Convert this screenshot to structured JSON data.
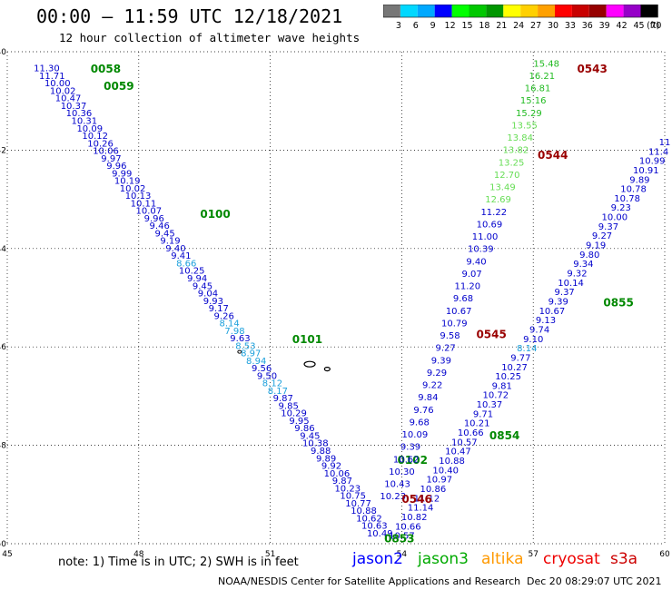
{
  "header": {
    "title": "00:00 – 11:59 UTC 12/18/2021",
    "subtitle": "12 hour collection of altimeter wave heights"
  },
  "colorbar": {
    "labels": [
      "3",
      "6",
      "9",
      "12",
      "15",
      "18",
      "21",
      "24",
      "27",
      "30",
      "33",
      "36",
      "39",
      "42",
      "45",
      "70"
    ],
    "unit": "(ft)",
    "colors": [
      "#777777",
      "#00d8ff",
      "#00a8ff",
      "#0000ff",
      "#00ff00",
      "#00c800",
      "#009600",
      "#ffff00",
      "#ffd000",
      "#ffa000",
      "#ff0000",
      "#c80000",
      "#960000",
      "#ff00ff",
      "#9600c8",
      "#000000"
    ]
  },
  "map": {
    "lon_ticks": [
      "45",
      "48",
      "51",
      "54",
      "57",
      "60"
    ],
    "lat_ticks": [
      "-40",
      "-42",
      "-44",
      "-46",
      "-48",
      "-50"
    ],
    "lon_range": [
      45,
      60
    ],
    "lat_range": [
      -50,
      -40
    ],
    "grid": true
  },
  "tracks": [
    {
      "satellite": "jason2",
      "color": "#0000cc",
      "start": [
        45.9,
        -40.4
      ],
      "end": [
        53.5,
        -49.85
      ],
      "values": [
        "11.30",
        "11.71",
        "10.00",
        "10.02",
        "10.47",
        "10.37",
        "10.36",
        "10.31",
        "10.09",
        "10.12",
        "10.26",
        "10.06",
        "9.97",
        "9.96",
        "9.99",
        "10.19",
        "10.02",
        "10.13",
        "10.11",
        "10.07",
        "9.96",
        "9.46",
        "9.45",
        "9.19",
        "9.40",
        "9.41",
        "8.66",
        "10.25",
        "9.94",
        "9.45",
        "9.04",
        "9.93",
        "9.17",
        "9.26",
        "8.14",
        "7.98",
        "9.63",
        "8.53",
        "8.97",
        "8.94",
        "9.56",
        "9.50",
        "8.12",
        "8.17",
        "9.87",
        "9.85",
        "10.29",
        "9.95",
        "9.86",
        "9.45",
        "10.38",
        "9.88",
        "9.89",
        "9.92",
        "10.06",
        "9.87",
        "10.23",
        "10.75",
        "10.77",
        "10.88",
        "10.62",
        "10.63",
        "10.49"
      ],
      "time_labels": [
        {
          "text": "0058",
          "lon": 46.9,
          "lat": -40.35
        },
        {
          "text": "0059",
          "lon": 47.2,
          "lat": -40.7
        },
        {
          "text": "0100",
          "lon": 49.4,
          "lat": -43.3
        },
        {
          "text": "0101",
          "lon": 51.5,
          "lat": -45.85
        },
        {
          "text": "0102",
          "lon": 53.9,
          "lat": -48.3
        }
      ]
    },
    {
      "satellite": "jason3",
      "color": "#00bb00",
      "start": [
        54.0,
        -49.9
      ],
      "end": [
        60.0,
        -41.9
      ],
      "values": [
        "10.57",
        "10.66",
        "10.82",
        "11.14",
        "11.12",
        "10.86",
        "10.97",
        "10.40",
        "10.88",
        "10.47",
        "10.57",
        "10.66",
        "10.21",
        "9.71",
        "10.37",
        "10.72",
        "9.81",
        "10.25",
        "10.27",
        "9.77",
        "8.14",
        "9.10",
        "9.74",
        "9.13",
        "10.67",
        "9.39",
        "9.37",
        "10.14",
        "9.32",
        "9.34",
        "9.80",
        "9.19",
        "9.27",
        "9.37",
        "10.00",
        "9.23",
        "10.78",
        "10.78",
        "9.89",
        "10.91",
        "10.99",
        "11.4",
        "11"
      ],
      "time_labels": [
        {
          "text": "0853",
          "lon": 53.6,
          "lat": -49.9
        },
        {
          "text": "0854",
          "lon": 56.0,
          "lat": -47.8
        },
        {
          "text": "0855",
          "lon": 58.6,
          "lat": -45.1
        }
      ]
    },
    {
      "satellite": "cryosat",
      "color": "#990000",
      "start": [
        53.8,
        -49.1
      ],
      "end": [
        57.3,
        -40.3
      ],
      "values": [
        "10.23",
        "10.43",
        "10.30",
        "10.62",
        "9.39",
        "10.09",
        "9.68",
        "9.76",
        "9.84",
        "9.22",
        "9.29",
        "9.39",
        "9.27",
        "9.58",
        "10.79",
        "10.67",
        "9.68",
        "11.20",
        "9.07",
        "9.40",
        "10.39",
        "11.00",
        "10.69",
        "11.22",
        "12.69",
        "13.49",
        "12.70",
        "13.25",
        "13.82",
        "13.84",
        "13.55",
        "15.29",
        "15.16",
        "16.81",
        "16.21",
        "15.48"
      ],
      "time_labels": [
        {
          "text": "0543",
          "lon": 58.0,
          "lat": -40.35
        },
        {
          "text": "0544",
          "lon": 57.1,
          "lat": -42.1
        },
        {
          "text": "0545",
          "lon": 55.7,
          "lat": -45.75
        },
        {
          "text": "0546",
          "lon": 54.0,
          "lat": -49.1
        }
      ]
    }
  ],
  "note": "note: 1) Time is in UTC; 2) SWH is in feet",
  "satellites": [
    {
      "name": "jason2",
      "color": "#0000ff"
    },
    {
      "name": "jason3",
      "color": "#00aa00"
    },
    {
      "name": "altika",
      "color": "#ff9900"
    },
    {
      "name": "cryosat",
      "color": "#ee0000"
    },
    {
      "name": "s3a",
      "color": "#cc0000"
    }
  ],
  "footer": {
    "credit": "NOAA/NESDIS Center for Satellite Applications and Research",
    "timestamp": "Dec 20 08:29:07 UTC 2021"
  }
}
